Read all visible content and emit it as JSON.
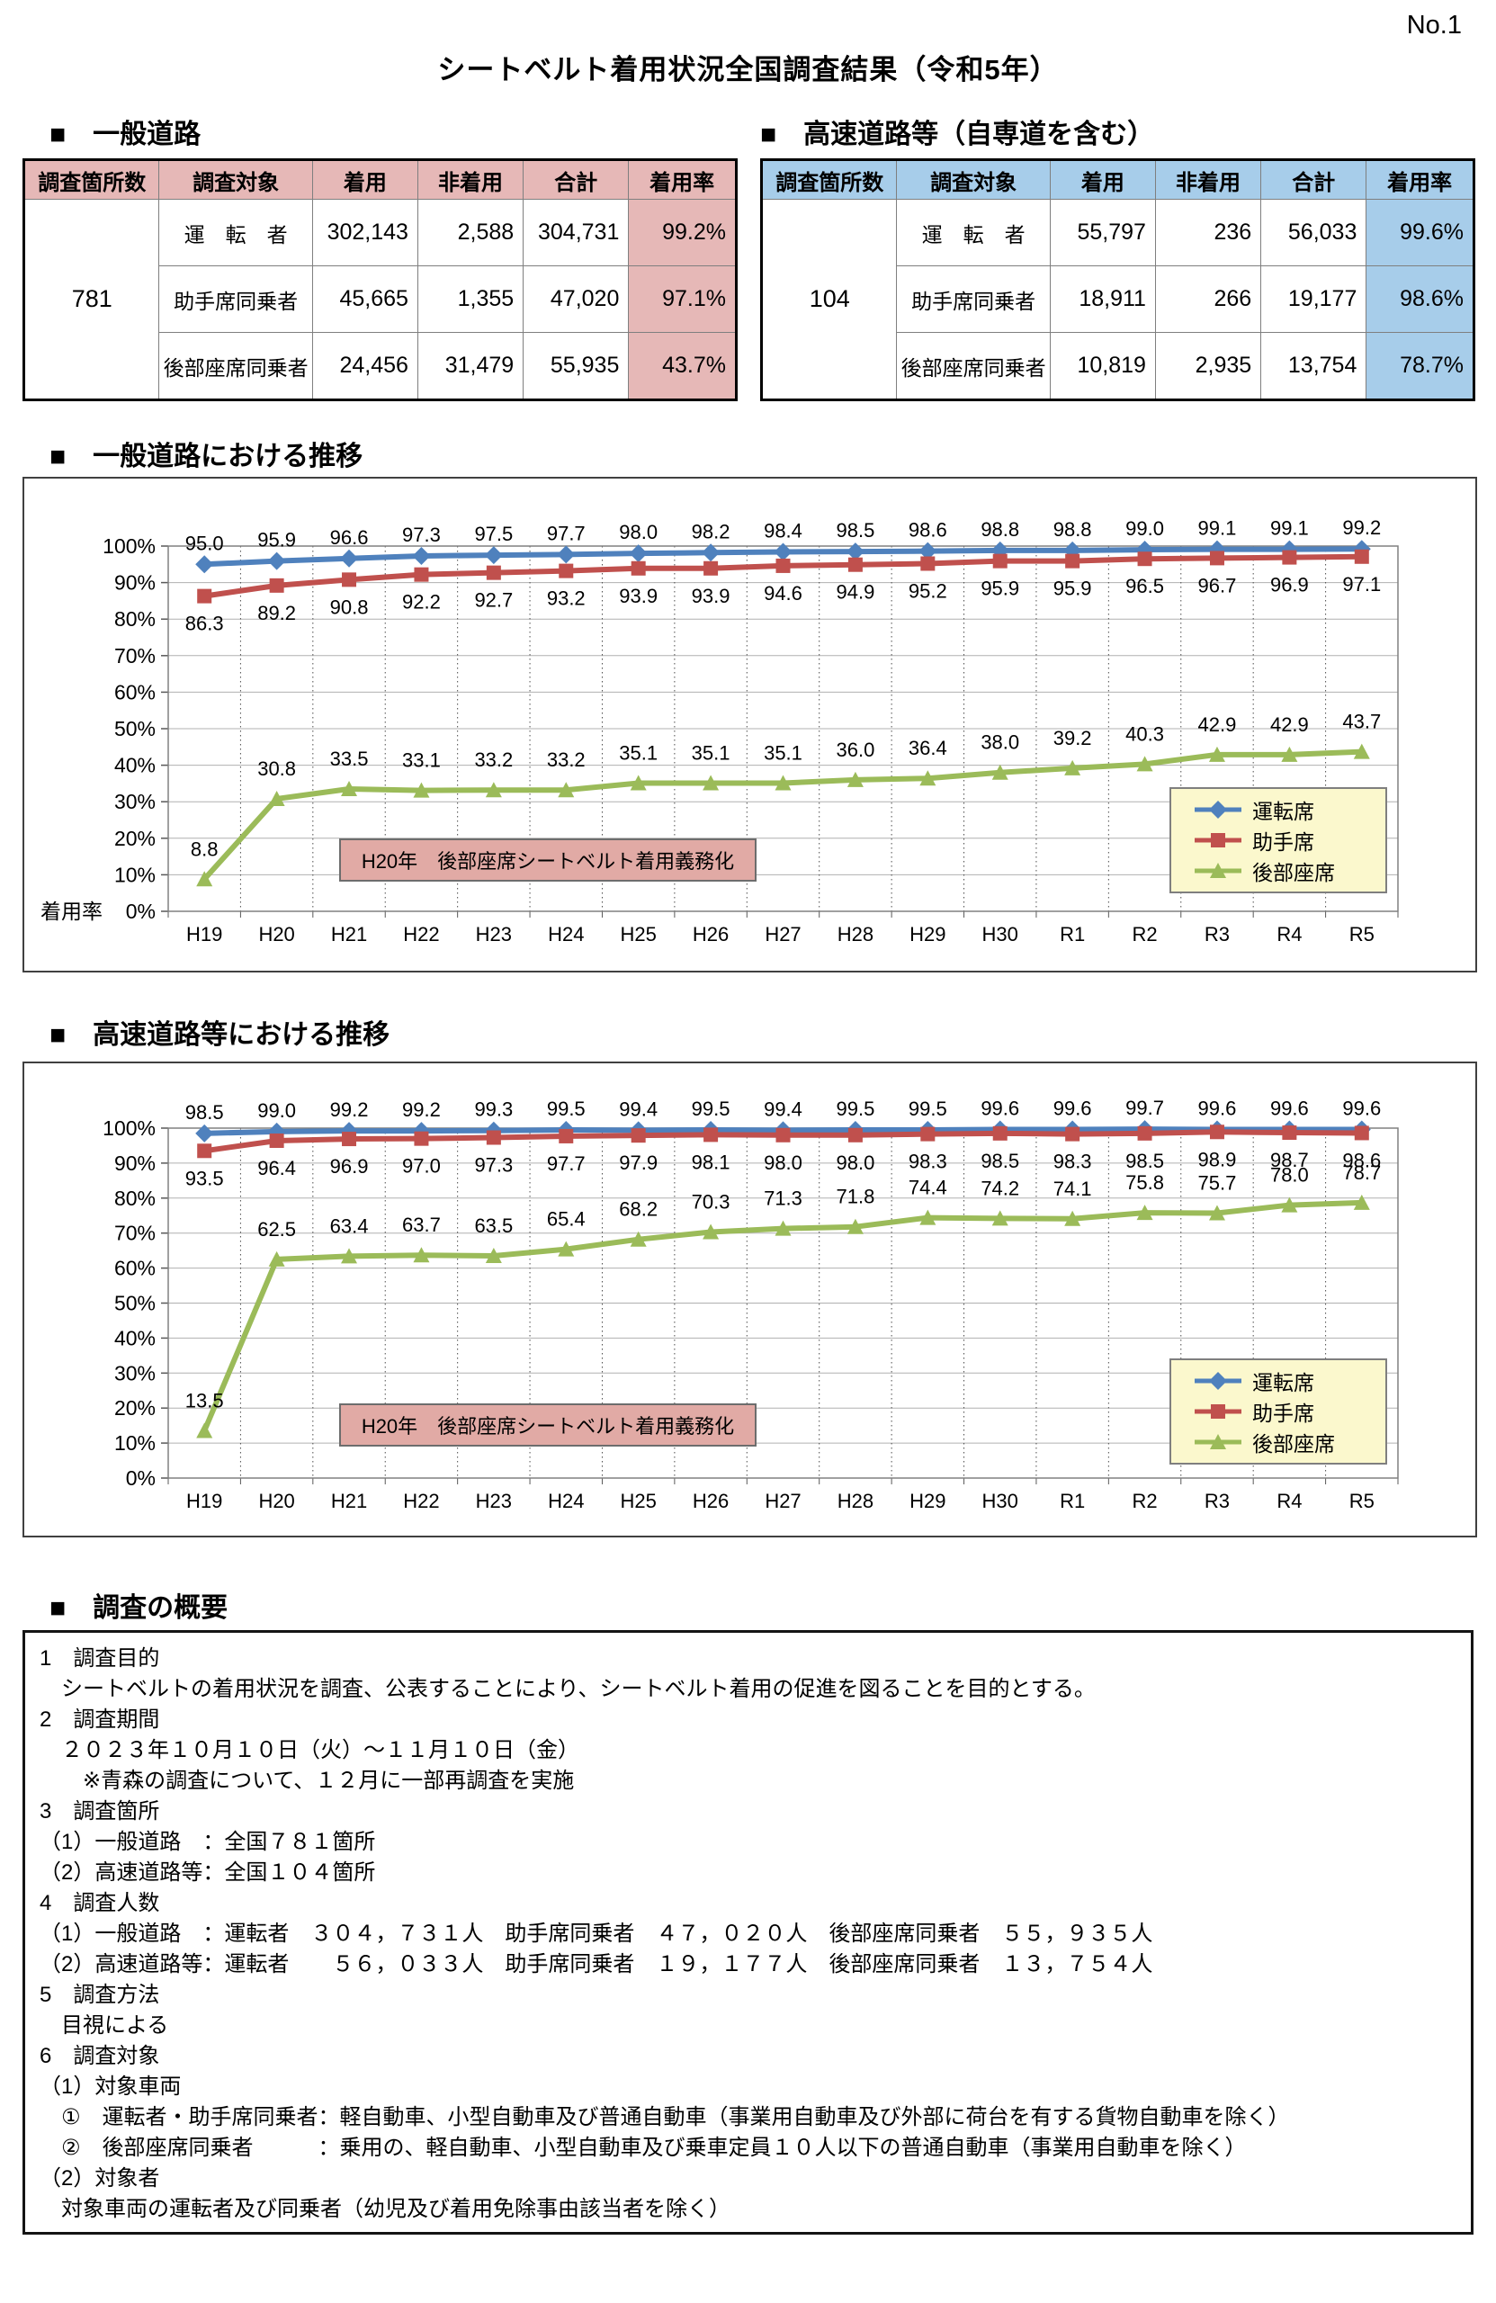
{
  "page": {
    "no": "No.1",
    "title": "シートベルト着用状況全国調査結果（令和5年）"
  },
  "tables": [
    {
      "heading": "■　一般道路",
      "accent": "#e6b8b7",
      "header": [
        "調査箇所数",
        "調査対象",
        "着用",
        "非着用",
        "合計",
        "着用率"
      ],
      "site_count": "781",
      "rows": [
        {
          "target": "運　転　者",
          "worn": "302,143",
          "not_worn": "2,588",
          "total": "304,731",
          "rate": "99.2%"
        },
        {
          "target": "助手席同乗者",
          "worn": "45,665",
          "not_worn": "1,355",
          "total": "47,020",
          "rate": "97.1%"
        },
        {
          "target": "後部座席同乗者",
          "worn": "24,456",
          "not_worn": "31,479",
          "total": "55,935",
          "rate": "43.7%"
        }
      ]
    },
    {
      "heading": "■　高速道路等（自専道を含む）",
      "accent": "#a7cdea",
      "header": [
        "調査箇所数",
        "調査対象",
        "着用",
        "非着用",
        "合計",
        "着用率"
      ],
      "site_count": "104",
      "rows": [
        {
          "target": "運　転　者",
          "worn": "55,797",
          "not_worn": "236",
          "total": "56,033",
          "rate": "99.6%"
        },
        {
          "target": "助手席同乗者",
          "worn": "18,911",
          "not_worn": "266",
          "total": "19,177",
          "rate": "98.6%"
        },
        {
          "target": "後部座席同乗者",
          "worn": "10,819",
          "not_worn": "2,935",
          "total": "13,754",
          "rate": "78.7%"
        }
      ]
    }
  ],
  "chart_data": [
    {
      "type": "line",
      "title": "■　一般道路における推移",
      "categories": [
        "H19",
        "H20",
        "H21",
        "H22",
        "H23",
        "H24",
        "H25",
        "H26",
        "H27",
        "H28",
        "H29",
        "H30",
        "R1",
        "R2",
        "R3",
        "R4",
        "R5"
      ],
      "series": [
        {
          "name": "運転席",
          "color": "#4F81BD",
          "marker": "diamond",
          "values": [
            95.0,
            95.9,
            96.6,
            97.3,
            97.5,
            97.7,
            98.0,
            98.2,
            98.4,
            98.5,
            98.6,
            98.8,
            98.8,
            99.0,
            99.1,
            99.1,
            99.2
          ]
        },
        {
          "name": "助手席",
          "color": "#C0504D",
          "marker": "square",
          "values": [
            86.3,
            89.2,
            90.8,
            92.2,
            92.7,
            93.2,
            93.9,
            93.9,
            94.6,
            94.9,
            95.2,
            95.9,
            95.9,
            96.5,
            96.7,
            96.9,
            97.1
          ]
        },
        {
          "name": "後部座席",
          "color": "#9BBB59",
          "marker": "triangle",
          "values": [
            8.8,
            30.8,
            33.5,
            33.1,
            33.2,
            33.2,
            35.1,
            35.1,
            35.1,
            36.0,
            36.4,
            38.0,
            39.2,
            40.3,
            42.9,
            42.9,
            43.7
          ]
        }
      ],
      "ylabel": "着用率",
      "ylim": [
        0,
        100
      ],
      "ytick_step": 10,
      "grid": true,
      "legend_position": "right",
      "annotation": "H20年　後部座席シートベルト着用義務化"
    },
    {
      "type": "line",
      "title": "■　高速道路等における推移",
      "categories": [
        "H19",
        "H20",
        "H21",
        "H22",
        "H23",
        "H24",
        "H25",
        "H26",
        "H27",
        "H28",
        "H29",
        "H30",
        "R1",
        "R2",
        "R3",
        "R4",
        "R5"
      ],
      "series": [
        {
          "name": "運転席",
          "color": "#4F81BD",
          "marker": "diamond",
          "values": [
            98.5,
            99.0,
            99.2,
            99.2,
            99.3,
            99.5,
            99.4,
            99.5,
            99.4,
            99.5,
            99.5,
            99.6,
            99.6,
            99.7,
            99.6,
            99.6,
            99.6
          ]
        },
        {
          "name": "助手席",
          "color": "#C0504D",
          "marker": "square",
          "values": [
            93.5,
            96.4,
            96.9,
            97.0,
            97.3,
            97.7,
            97.9,
            98.1,
            98.0,
            98.0,
            98.3,
            98.5,
            98.3,
            98.5,
            98.9,
            98.7,
            98.6
          ]
        },
        {
          "name": "後部座席",
          "color": "#9BBB59",
          "marker": "triangle",
          "values": [
            13.5,
            62.5,
            63.4,
            63.7,
            63.5,
            65.4,
            68.2,
            70.3,
            71.3,
            71.8,
            74.4,
            74.2,
            74.1,
            75.8,
            75.7,
            78.0,
            78.7
          ]
        }
      ],
      "ylabel": "",
      "ylim": [
        0,
        100
      ],
      "ytick_step": 10,
      "grid": true,
      "legend_position": "right",
      "annotation": "H20年　後部座席シートベルト着用義務化"
    }
  ],
  "summary": {
    "heading": "■　調査の概要",
    "lines": [
      "1　調査目的",
      "　シートベルトの着用状況を調査、公表することにより、シートベルト着用の促進を図ることを目的とする。",
      "2　調査期間",
      "　２０２３年１０月１０日（火）～１１月１０日（金）",
      "　　※青森の調査について、１２月に一部再調査を実施",
      "3　調査箇所",
      "（1）一般道路　：全国７８１箇所",
      "（2）高速道路等：全国１０４箇所",
      "4　調査人数",
      "（1）一般道路　：運転者　３０４，７３１人　助手席同乗者　４７，０２０人　後部座席同乗者　５５，９３５人",
      "（2）高速道路等：運転者　　５６，０３３人　助手席同乗者　１９，１７７人　後部座席同乗者　１３，７５４人",
      "5　調査方法",
      "　目視による",
      "6　調査対象",
      "（1）対象車両",
      "　①　運転者・助手席同乗者：軽自動車、小型自動車及び普通自動車（事業用自動車及び外部に荷台を有する貨物自動車を除く）",
      "　②　後部座席同乗者　　　：乗用の、軽自動車、小型自動車及び乗車定員１０人以下の普通自動車（事業用自動車を除く）",
      "（2）対象者",
      "　対象車両の運転者及び同乗者（幼児及び着用免除事由該当者を除く）"
    ]
  }
}
